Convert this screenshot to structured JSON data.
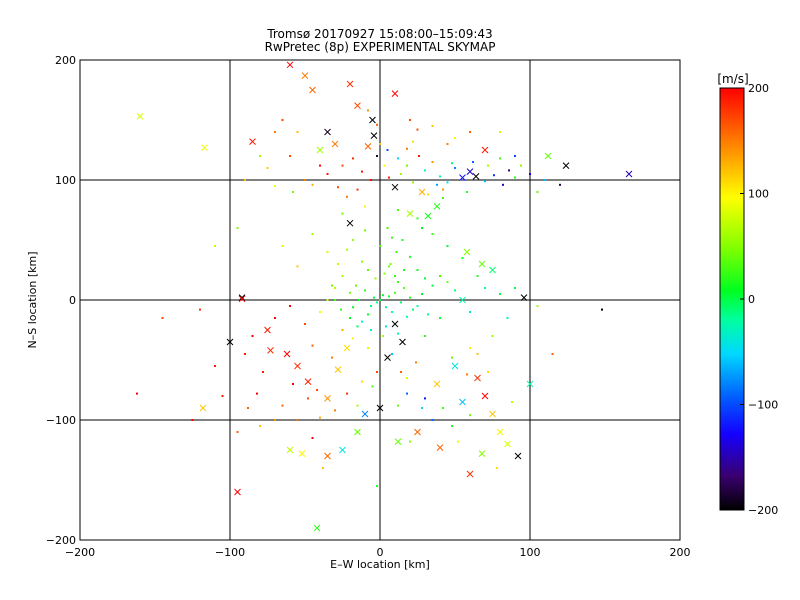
{
  "chart_data": {
    "type": "scatter",
    "title": "Tromsø 20170927 15:08:00–15:09:43",
    "subtitle": "RwPretec (8p) EXPERIMENTAL SKYMAP",
    "xlabel": "E–W location [km]",
    "ylabel": "N–S location [km]",
    "xlim": [
      -200,
      200
    ],
    "ylim": [
      -200,
      200
    ],
    "x_ticks": [
      -200,
      -100,
      0,
      100,
      200
    ],
    "y_ticks": [
      -200,
      -100,
      0,
      100,
      200
    ],
    "grid": true,
    "colorbar": {
      "label": "[m/s]",
      "range": [
        -200,
        200
      ],
      "ticks": [
        200,
        100,
        0,
        -100,
        -200
      ]
    },
    "marker_legend": "small dot and cross markers; colour = velocity in m/s",
    "points": [
      [
        -160,
        153,
        80,
        "x"
      ],
      [
        -117,
        127,
        90,
        "x"
      ],
      [
        -60,
        196,
        200,
        "x"
      ],
      [
        -50,
        187,
        150,
        "x"
      ],
      [
        -45,
        175,
        160,
        "x"
      ],
      [
        -15,
        162,
        170,
        "x"
      ],
      [
        -20,
        180,
        180,
        "x"
      ],
      [
        10,
        172,
        200,
        "x"
      ],
      [
        -85,
        132,
        190,
        "x"
      ],
      [
        -65,
        150,
        170,
        "."
      ],
      [
        -55,
        140,
        120,
        "."
      ],
      [
        -40,
        125,
        60,
        "x"
      ],
      [
        -35,
        140,
        -190,
        "x"
      ],
      [
        -30,
        130,
        150,
        "x"
      ],
      [
        -25,
        112,
        170,
        "."
      ],
      [
        -18,
        118,
        180,
        "."
      ],
      [
        -12,
        107,
        190,
        "."
      ],
      [
        -8,
        128,
        160,
        "x"
      ],
      [
        -4,
        137,
        -200,
        "x"
      ],
      [
        0,
        130,
        120,
        "."
      ],
      [
        3,
        112,
        100,
        "."
      ],
      [
        6,
        102,
        190,
        "."
      ],
      [
        10,
        94,
        -200,
        "x"
      ],
      [
        14,
        105,
        60,
        "."
      ],
      [
        18,
        112,
        40,
        "."
      ],
      [
        22,
        98,
        50,
        "."
      ],
      [
        26,
        120,
        190,
        "."
      ],
      [
        30,
        108,
        -30,
        "."
      ],
      [
        35,
        115,
        140,
        "."
      ],
      [
        40,
        103,
        -20,
        "."
      ],
      [
        45,
        98,
        -50,
        "."
      ],
      [
        50,
        110,
        -80,
        "."
      ],
      [
        55,
        102,
        -120,
        "x"
      ],
      [
        60,
        107,
        -140,
        "x"
      ],
      [
        64,
        103,
        -200,
        "x"
      ],
      [
        70,
        99,
        -60,
        "."
      ],
      [
        76,
        104,
        -110,
        "."
      ],
      [
        82,
        96,
        -150,
        "."
      ],
      [
        90,
        102,
        20,
        "."
      ],
      [
        100,
        105,
        -130,
        "."
      ],
      [
        112,
        120,
        40,
        "x"
      ],
      [
        124,
        112,
        -200,
        "x"
      ],
      [
        166,
        105,
        -150,
        "x"
      ],
      [
        120,
        96,
        -180,
        "."
      ],
      [
        70,
        125,
        190,
        "x"
      ],
      [
        45,
        130,
        150,
        "."
      ],
      [
        25,
        142,
        170,
        "."
      ],
      [
        -2,
        146,
        160,
        "."
      ],
      [
        -50,
        100,
        150,
        "."
      ],
      [
        -70,
        95,
        90,
        "."
      ],
      [
        -58,
        90,
        40,
        "."
      ],
      [
        -75,
        110,
        120,
        "."
      ],
      [
        -10,
        78,
        100,
        "."
      ],
      [
        20,
        72,
        60,
        "x"
      ],
      [
        28,
        90,
        130,
        "x"
      ],
      [
        -20,
        64,
        -200,
        "x"
      ],
      [
        5,
        60,
        30,
        "."
      ],
      [
        -35,
        40,
        80,
        "."
      ],
      [
        -55,
        28,
        120,
        "."
      ],
      [
        -92,
        2,
        -200,
        "x"
      ],
      [
        -92,
        1,
        200,
        "x"
      ],
      [
        -120,
        -8,
        180,
        "."
      ],
      [
        -145,
        -15,
        170,
        "."
      ],
      [
        -75,
        -25,
        190,
        "x"
      ],
      [
        -62,
        -45,
        200,
        "x"
      ],
      [
        -55,
        -55,
        180,
        "x"
      ],
      [
        -48,
        -68,
        190,
        "x"
      ],
      [
        -42,
        -75,
        170,
        "."
      ],
      [
        -35,
        -82,
        140,
        "x"
      ],
      [
        -28,
        -58,
        120,
        "x"
      ],
      [
        -22,
        -40,
        110,
        "x"
      ],
      [
        -15,
        -88,
        60,
        "."
      ],
      [
        -10,
        -95,
        -80,
        "x"
      ],
      [
        -5,
        -72,
        30,
        "."
      ],
      [
        5,
        -48,
        -200,
        "x"
      ],
      [
        12,
        -88,
        40,
        "."
      ],
      [
        18,
        -65,
        80,
        "."
      ],
      [
        25,
        -110,
        160,
        "x"
      ],
      [
        30,
        -30,
        20,
        "."
      ],
      [
        40,
        -15,
        10,
        "."
      ],
      [
        50,
        -55,
        -40,
        "x"
      ],
      [
        55,
        -85,
        -60,
        "x"
      ],
      [
        60,
        -40,
        100,
        "."
      ],
      [
        65,
        -65,
        180,
        "x"
      ],
      [
        70,
        -80,
        200,
        "x"
      ],
      [
        75,
        -95,
        120,
        "x"
      ],
      [
        80,
        -110,
        90,
        "x"
      ],
      [
        85,
        -120,
        80,
        "x"
      ],
      [
        92,
        -130,
        -200,
        "x"
      ],
      [
        60,
        -145,
        180,
        "x"
      ],
      [
        40,
        -123,
        160,
        "x"
      ],
      [
        20,
        -118,
        50,
        "."
      ],
      [
        0,
        -90,
        -200,
        "x"
      ],
      [
        -15,
        -110,
        40,
        "x"
      ],
      [
        -25,
        -125,
        -40,
        "x"
      ],
      [
        -35,
        -130,
        160,
        "x"
      ],
      [
        -45,
        -115,
        200,
        "."
      ],
      [
        -55,
        -100,
        150,
        "."
      ],
      [
        -60,
        -125,
        70,
        "x"
      ],
      [
        -73,
        -42,
        180,
        "x"
      ],
      [
        -78,
        -60,
        190,
        "."
      ],
      [
        -82,
        -78,
        200,
        "."
      ],
      [
        -88,
        -90,
        160,
        "."
      ],
      [
        -100,
        -35,
        -200,
        "x"
      ],
      [
        -110,
        -55,
        190,
        "."
      ],
      [
        -118,
        -90,
        120,
        "x"
      ],
      [
        -125,
        -100,
        200,
        "."
      ],
      [
        -162,
        -78,
        200,
        "."
      ],
      [
        -95,
        -160,
        200,
        "x"
      ],
      [
        -52,
        -128,
        100,
        "x"
      ],
      [
        -38,
        -140,
        120,
        "."
      ],
      [
        -42,
        -190,
        20,
        "x"
      ],
      [
        -2,
        -155,
        20,
        "."
      ],
      [
        12,
        -118,
        40,
        "x"
      ],
      [
        28,
        -90,
        -50,
        "."
      ],
      [
        35,
        -100,
        -90,
        "."
      ],
      [
        10,
        -20,
        -200,
        "x"
      ],
      [
        15,
        -35,
        -200,
        "x"
      ],
      [
        -8,
        -12,
        10,
        "."
      ],
      [
        -6,
        -5,
        -10,
        "."
      ],
      [
        -4,
        2,
        0,
        "."
      ],
      [
        -2,
        -2,
        -20,
        "."
      ],
      [
        0,
        0,
        0,
        "."
      ],
      [
        2,
        4,
        10,
        "."
      ],
      [
        4,
        -6,
        -15,
        "."
      ],
      [
        6,
        3,
        5,
        "."
      ],
      [
        8,
        -10,
        -25,
        "."
      ],
      [
        10,
        6,
        30,
        "."
      ],
      [
        -10,
        8,
        20,
        "."
      ],
      [
        -12,
        -18,
        -30,
        "."
      ],
      [
        12,
        15,
        25,
        "."
      ],
      [
        14,
        -2,
        -10,
        "."
      ],
      [
        -14,
        0,
        15,
        "."
      ],
      [
        16,
        10,
        35,
        "."
      ],
      [
        -16,
        12,
        40,
        "."
      ],
      [
        18,
        -14,
        -20,
        "."
      ],
      [
        -18,
        -6,
        10,
        "."
      ],
      [
        20,
        2,
        20,
        "."
      ],
      [
        -20,
        6,
        45,
        "."
      ],
      [
        22,
        -8,
        -5,
        "."
      ],
      [
        -3,
        18,
        60,
        "."
      ],
      [
        3,
        22,
        50,
        "."
      ],
      [
        7,
        30,
        45,
        "."
      ],
      [
        11,
        40,
        30,
        "."
      ],
      [
        15,
        50,
        20,
        "."
      ],
      [
        20,
        36,
        15,
        "."
      ],
      [
        25,
        25,
        10,
        "."
      ],
      [
        30,
        18,
        5,
        "."
      ],
      [
        35,
        12,
        0,
        "."
      ],
      [
        40,
        20,
        30,
        "."
      ],
      [
        45,
        15,
        40,
        "."
      ],
      [
        50,
        8,
        -10,
        "."
      ],
      [
        55,
        0,
        -20,
        "x"
      ],
      [
        60,
        -10,
        -40,
        "."
      ],
      [
        -25,
        20,
        60,
        "."
      ],
      [
        -30,
        10,
        70,
        "."
      ],
      [
        -35,
        0,
        80,
        "."
      ],
      [
        -40,
        -10,
        90,
        "."
      ],
      [
        -28,
        30,
        70,
        "."
      ],
      [
        -22,
        42,
        60,
        "."
      ],
      [
        -18,
        50,
        55,
        "."
      ],
      [
        -10,
        58,
        40,
        "."
      ],
      [
        0,
        45,
        30,
        "."
      ],
      [
        8,
        52,
        25,
        "."
      ],
      [
        28,
        60,
        10,
        "."
      ],
      [
        32,
        70,
        15,
        "x"
      ],
      [
        38,
        78,
        20,
        "x"
      ],
      [
        42,
        85,
        30,
        "."
      ],
      [
        58,
        40,
        50,
        "x"
      ],
      [
        68,
        30,
        40,
        "x"
      ],
      [
        75,
        25,
        -10,
        "x"
      ],
      [
        90,
        10,
        0,
        "."
      ],
      [
        96,
        2,
        -200,
        "x"
      ],
      [
        105,
        -5,
        60,
        "."
      ],
      [
        148,
        -8,
        -200,
        "."
      ],
      [
        115,
        -45,
        160,
        "."
      ],
      [
        100,
        -70,
        -20,
        "x"
      ],
      [
        88,
        -85,
        70,
        "."
      ],
      [
        72,
        -60,
        110,
        "."
      ],
      [
        58,
        -62,
        150,
        "."
      ],
      [
        48,
        -48,
        40,
        "."
      ],
      [
        38,
        -70,
        120,
        "x"
      ],
      [
        24,
        -52,
        150,
        "."
      ],
      [
        14,
        -60,
        160,
        "."
      ],
      [
        -2,
        -60,
        170,
        "."
      ],
      [
        -12,
        -68,
        110,
        "."
      ],
      [
        -22,
        -78,
        180,
        "."
      ],
      [
        -30,
        -92,
        150,
        "."
      ],
      [
        -40,
        -98,
        130,
        "."
      ],
      [
        -48,
        -82,
        170,
        "."
      ],
      [
        -58,
        -70,
        200,
        "."
      ],
      [
        -65,
        -88,
        160,
        "."
      ],
      [
        -70,
        -100,
        140,
        "."
      ],
      [
        -80,
        -105,
        120,
        "."
      ],
      [
        -95,
        -110,
        160,
        "."
      ],
      [
        -105,
        -80,
        190,
        "."
      ],
      [
        -90,
        -45,
        190,
        "."
      ],
      [
        -85,
        -30,
        200,
        "."
      ],
      [
        -70,
        -15,
        200,
        "."
      ],
      [
        -60,
        -5,
        200,
        "."
      ],
      [
        -50,
        -20,
        170,
        "."
      ],
      [
        -45,
        -38,
        160,
        "."
      ],
      [
        -32,
        -48,
        150,
        "."
      ],
      [
        -25,
        -25,
        130,
        "."
      ],
      [
        -18,
        -32,
        100,
        "."
      ],
      [
        -8,
        -40,
        80,
        "."
      ],
      [
        2,
        -30,
        60,
        "."
      ],
      [
        8,
        -45,
        -60,
        "."
      ],
      [
        18,
        -78,
        -90,
        "."
      ],
      [
        30,
        -82,
        -120,
        "."
      ],
      [
        42,
        -90,
        30,
        "."
      ],
      [
        48,
        -105,
        20,
        "."
      ],
      [
        52,
        -118,
        90,
        "."
      ],
      [
        68,
        -128,
        50,
        "x"
      ],
      [
        78,
        -140,
        110,
        "."
      ],
      [
        60,
        -96,
        40,
        "."
      ],
      [
        -2,
        120,
        -180,
        "."
      ],
      [
        5,
        125,
        -100,
        "."
      ],
      [
        12,
        118,
        -50,
        "."
      ],
      [
        18,
        126,
        150,
        "."
      ],
      [
        22,
        132,
        110,
        "."
      ],
      [
        -6,
        100,
        200,
        "."
      ],
      [
        -15,
        92,
        180,
        "."
      ],
      [
        -22,
        86,
        150,
        "."
      ],
      [
        -28,
        94,
        170,
        "."
      ],
      [
        -35,
        105,
        190,
        "."
      ],
      [
        -40,
        112,
        200,
        "."
      ],
      [
        -45,
        96,
        130,
        "."
      ],
      [
        -60,
        120,
        170,
        "."
      ],
      [
        -70,
        140,
        150,
        "."
      ],
      [
        -80,
        120,
        60,
        "."
      ],
      [
        -90,
        100,
        120,
        "."
      ],
      [
        32,
        88,
        110,
        "."
      ],
      [
        38,
        96,
        -70,
        "."
      ],
      [
        42,
        92,
        140,
        "."
      ],
      [
        48,
        114,
        -10,
        "."
      ],
      [
        58,
        90,
        20,
        "."
      ],
      [
        62,
        115,
        -90,
        "."
      ],
      [
        72,
        112,
        60,
        "."
      ],
      [
        80,
        118,
        30,
        "."
      ],
      [
        86,
        108,
        -160,
        "."
      ],
      [
        94,
        112,
        50,
        "."
      ],
      [
        105,
        90,
        40,
        "."
      ],
      [
        110,
        100,
        -60,
        "."
      ],
      [
        -5,
        150,
        -200,
        "x"
      ],
      [
        -8,
        158,
        140,
        "."
      ],
      [
        20,
        150,
        170,
        "."
      ],
      [
        35,
        145,
        120,
        "."
      ],
      [
        50,
        135,
        90,
        "."
      ],
      [
        60,
        140,
        160,
        "."
      ],
      [
        80,
        140,
        80,
        "."
      ],
      [
        90,
        120,
        -100,
        "."
      ],
      [
        -95,
        60,
        50,
        "."
      ],
      [
        -110,
        45,
        70,
        "."
      ],
      [
        -65,
        45,
        80,
        "."
      ],
      [
        -45,
        55,
        60,
        "."
      ],
      [
        -25,
        72,
        40,
        "."
      ],
      [
        12,
        75,
        30,
        "."
      ],
      [
        25,
        68,
        20,
        "."
      ],
      [
        35,
        55,
        25,
        "."
      ],
      [
        45,
        45,
        10,
        "."
      ],
      [
        55,
        35,
        15,
        "."
      ],
      [
        65,
        20,
        20,
        "."
      ],
      [
        70,
        10,
        -20,
        "."
      ],
      [
        80,
        5,
        0,
        "."
      ],
      [
        85,
        -15,
        -30,
        "."
      ],
      [
        75,
        -30,
        60,
        "."
      ],
      [
        65,
        -45,
        120,
        "."
      ],
      [
        25,
        -5,
        -20,
        "."
      ],
      [
        28,
        5,
        10,
        "."
      ],
      [
        32,
        -12,
        -15,
        "."
      ],
      [
        -26,
        -8,
        20,
        "."
      ],
      [
        -30,
        0,
        30,
        "."
      ],
      [
        -32,
        12,
        40,
        "."
      ],
      [
        -8,
        25,
        35,
        "."
      ],
      [
        -12,
        32,
        50,
        "."
      ],
      [
        6,
        28,
        40,
        "."
      ],
      [
        10,
        20,
        25,
        "."
      ],
      [
        -6,
        -25,
        -30,
        "."
      ],
      [
        4,
        -22,
        -40,
        "."
      ],
      [
        12,
        -28,
        -20,
        "."
      ],
      [
        -15,
        -22,
        0,
        "."
      ],
      [
        -20,
        -15,
        10,
        "."
      ],
      [
        16,
        25,
        20,
        "."
      ]
    ]
  }
}
